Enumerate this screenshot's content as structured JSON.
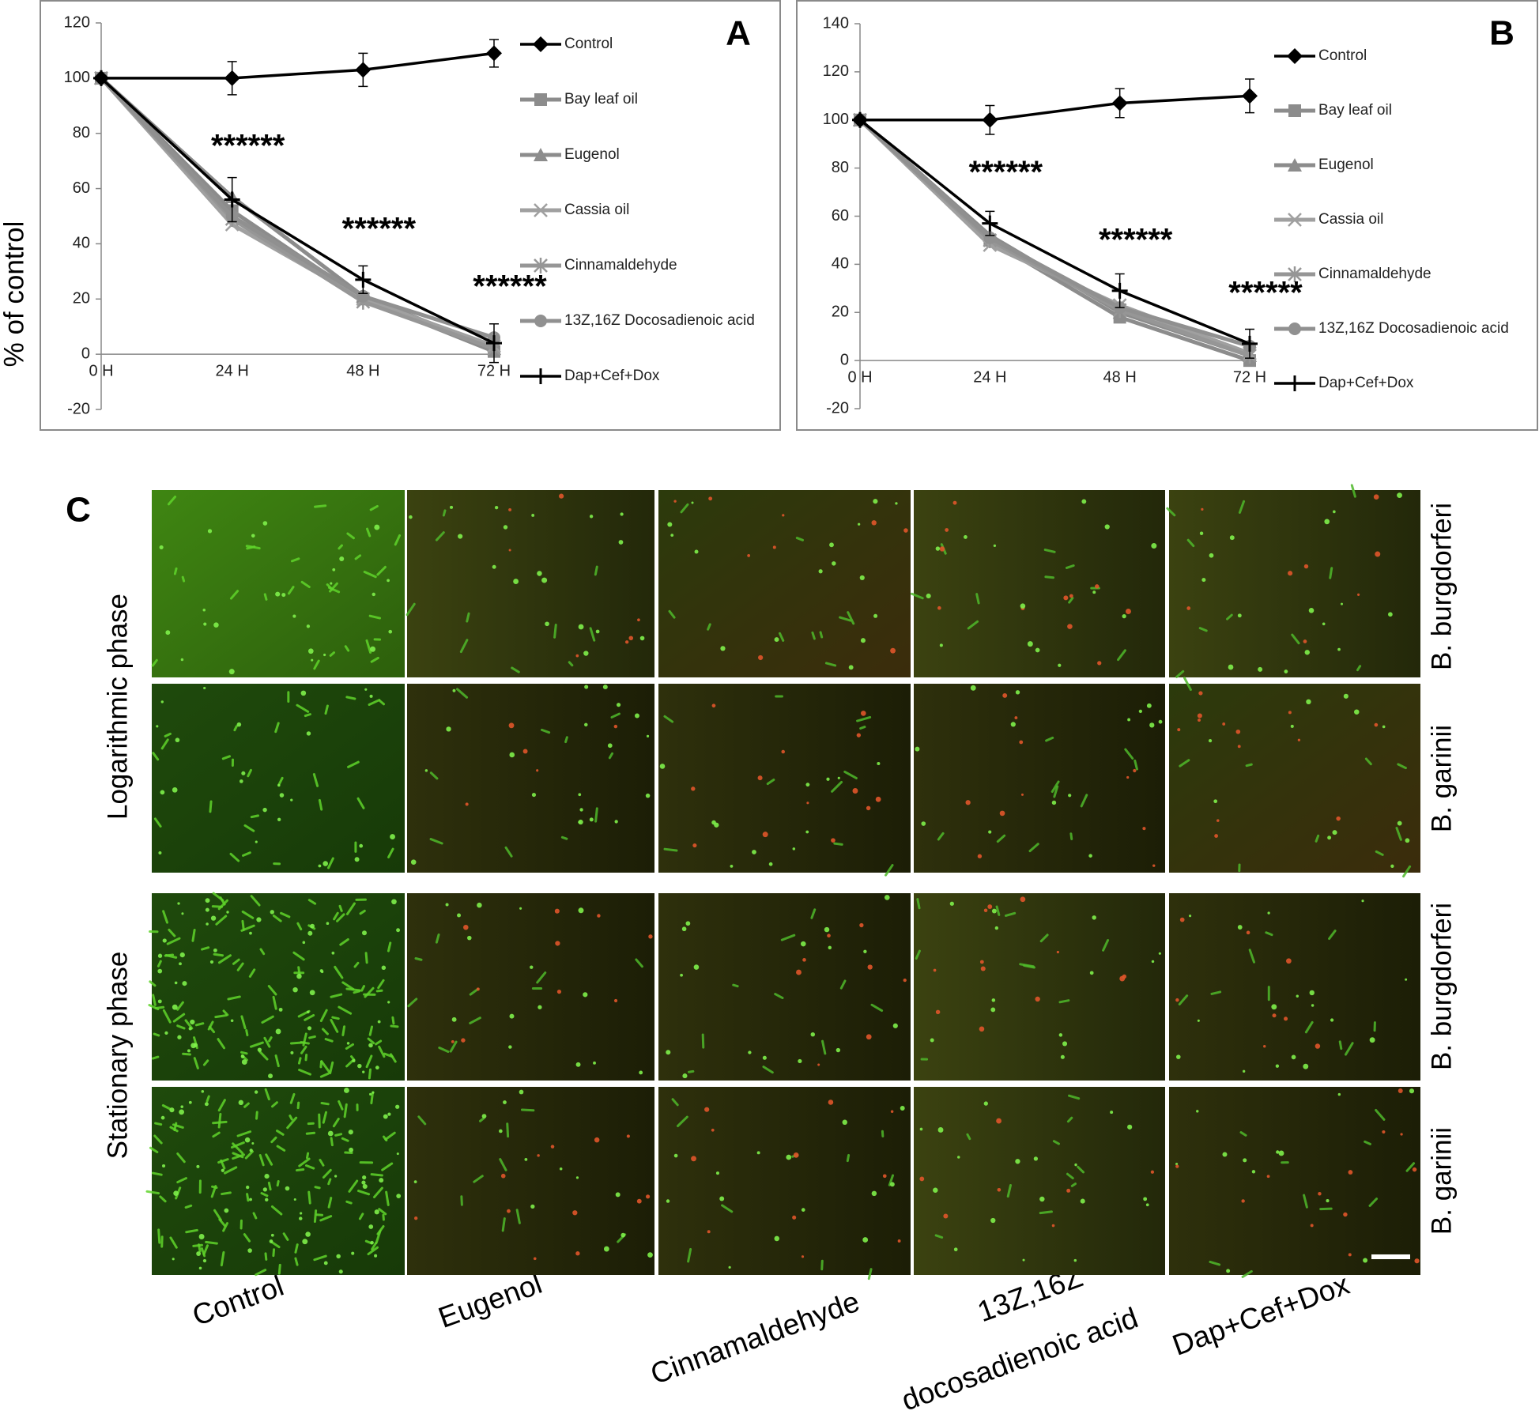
{
  "chart_data": [
    {
      "type": "line",
      "panel_label": "A",
      "y_label": "% of control",
      "categories": [
        "0 H",
        "24 H",
        "48 H",
        "72 H"
      ],
      "ylim": [
        -20,
        120
      ],
      "yticks": [
        -20,
        0,
        20,
        40,
        60,
        80,
        100,
        120
      ],
      "annotations": [
        "******",
        "******",
        "******"
      ],
      "series": [
        {
          "name": "Control",
          "color": "#000000",
          "marker": "diamond",
          "values": [
            100,
            100,
            103,
            109
          ],
          "errors": [
            null,
            6,
            6,
            5
          ]
        },
        {
          "name": "Bay leaf oil",
          "color": "#8c8c8c",
          "marker": "square",
          "values": [
            100,
            52,
            20,
            1
          ]
        },
        {
          "name": "Eugenol",
          "color": "#8c8c8c",
          "marker": "triangle",
          "values": [
            100,
            57,
            21,
            2
          ]
        },
        {
          "name": "Cassia oil",
          "color": "#a0a0a0",
          "marker": "x",
          "values": [
            100,
            47,
            20,
            3
          ]
        },
        {
          "name": "Cinnamaldehyde",
          "color": "#969696",
          "marker": "star",
          "values": [
            100,
            49,
            19,
            2
          ]
        },
        {
          "name": "13Z,16Z Docosadienoic acid",
          "color": "#909090",
          "marker": "circle",
          "values": [
            100,
            50,
            21,
            6
          ]
        },
        {
          "name": "Dap+Cef+Dox",
          "color": "#000000",
          "marker": "plus",
          "values": [
            100,
            56,
            27,
            4
          ],
          "errors": [
            null,
            8,
            5,
            7
          ]
        }
      ]
    },
    {
      "type": "line",
      "panel_label": "B",
      "categories": [
        "0 H",
        "24 H",
        "48 H",
        "72 H"
      ],
      "ylim": [
        -20,
        140
      ],
      "yticks": [
        -20,
        0,
        20,
        40,
        60,
        80,
        100,
        120,
        140
      ],
      "annotations": [
        "******",
        "******",
        "******"
      ],
      "series": [
        {
          "name": "Control",
          "color": "#000000",
          "marker": "diamond",
          "values": [
            100,
            100,
            107,
            110
          ],
          "errors": [
            null,
            6,
            6,
            7
          ]
        },
        {
          "name": "Bay leaf oil",
          "color": "#8c8c8c",
          "marker": "square",
          "values": [
            100,
            50,
            18,
            0
          ]
        },
        {
          "name": "Eugenol",
          "color": "#8c8c8c",
          "marker": "triangle",
          "values": [
            100,
            52,
            20,
            2
          ]
        },
        {
          "name": "Cassia oil",
          "color": "#a0a0a0",
          "marker": "x",
          "values": [
            100,
            48,
            23,
            3
          ]
        },
        {
          "name": "Cinnamaldehyde",
          "color": "#969696",
          "marker": "star",
          "values": [
            100,
            50,
            21,
            2
          ]
        },
        {
          "name": "13Z,16Z Docosadienoic acid",
          "color": "#909090",
          "marker": "circle",
          "values": [
            100,
            51,
            22,
            6
          ]
        },
        {
          "name": "Dap+Cef+Dox",
          "color": "#000000",
          "marker": "plus",
          "values": [
            100,
            57,
            29,
            7
          ],
          "errors": [
            null,
            5,
            7,
            6
          ]
        }
      ]
    }
  ],
  "panel_c": {
    "label": "C",
    "phases": [
      "Logarithmic phase",
      "Stationary phase"
    ],
    "strains": [
      "B. burgdorferi",
      "B. garinii",
      "B. burgdorferi",
      "B. garinii"
    ],
    "column_labels": [
      [
        "Control"
      ],
      [
        "Eugenol"
      ],
      [
        "Cinnamaldehyde"
      ],
      [
        "13Z,16Z",
        "docosadienoic acid"
      ],
      [
        "Dap+Cef+Dox"
      ]
    ]
  }
}
